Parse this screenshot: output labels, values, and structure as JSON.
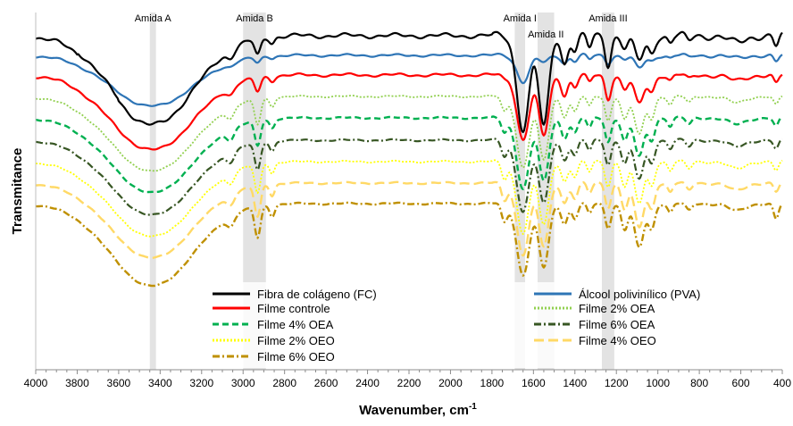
{
  "chart_data": {
    "type": "line",
    "xlabel": "Wavenumber, cm",
    "xlabel_sup": "-1",
    "ylabel": "Transmitance",
    "xlim": [
      4000,
      400
    ],
    "x_reversed": true,
    "y_ticks_shown": false,
    "grid": false,
    "legend_placement": "bottom-inside",
    "x_ticks": [
      4000,
      3800,
      3600,
      3400,
      3200,
      3000,
      2800,
      2600,
      2400,
      2200,
      2000,
      1800,
      1600,
      1400,
      1200,
      1000,
      800,
      600,
      400
    ],
    "x_tick_labels": [
      "4000",
      "3800",
      "3600",
      "3400",
      "3200",
      "3000",
      "2800",
      "2600",
      "2400",
      "2200",
      "2000",
      "1800",
      "1600",
      "1400",
      "1200",
      "1000",
      "800",
      "600",
      "400"
    ],
    "bands": [
      {
        "label": "Amida A",
        "from": 3450,
        "to": 3420
      },
      {
        "label": "Amida B",
        "from": 3000,
        "to": 2890
      },
      {
        "label": "Amida I",
        "from": 1690,
        "to": 1640
      },
      {
        "label": "Amida II",
        "from": 1580,
        "to": 1500
      },
      {
        "label": "Amida III",
        "from": 1270,
        "to": 1210
      }
    ],
    "series": [
      {
        "name": "Fibra de colágeno (FC)",
        "color": "#000000",
        "dash": "solid"
      },
      {
        "name": "Álcool polivinílico (PVA)",
        "color": "#2e75b6",
        "dash": "solid"
      },
      {
        "name": "Filme controle",
        "color": "#ff0000",
        "dash": "solid"
      },
      {
        "name": "Filme 2% OEA",
        "color": "#92d050",
        "dash": "dotted"
      },
      {
        "name": "Filme 4% OEA",
        "color": "#00b050",
        "dash": "dashed"
      },
      {
        "name": "Filme 6% OEA",
        "color": "#375623",
        "dash": "dashdot"
      },
      {
        "name": "Filme 2% OEO",
        "color": "#ffff00",
        "dash": "dotted"
      },
      {
        "name": "Filme 4% OEO",
        "color": "#ffd966",
        "dash": "longdash"
      },
      {
        "name": "Filme 6% OEO",
        "color": "#bf9000",
        "dash": "dashdot"
      }
    ]
  }
}
